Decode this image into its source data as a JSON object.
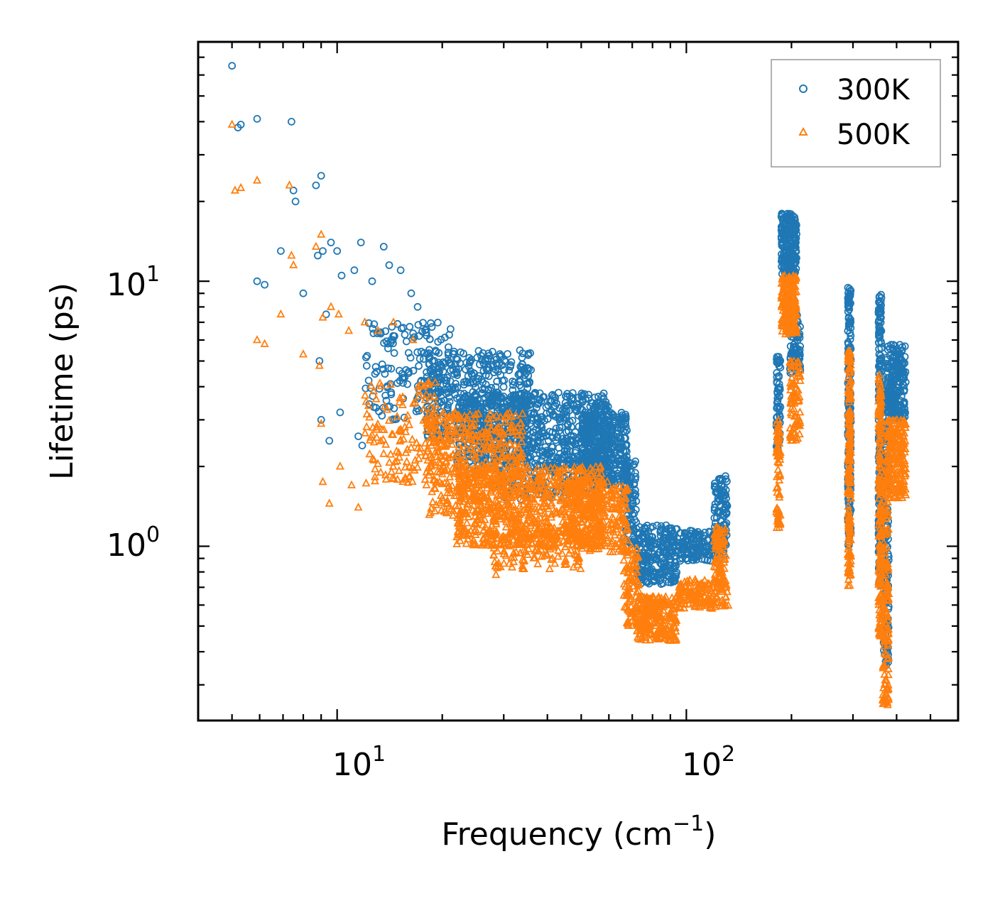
{
  "chart_data": {
    "type": "scatter",
    "xlabel": "Frequency (cm",
    "xlabel_sup": "−1",
    "xlabel_end": ")",
    "ylabel": "Lifetime (ps)",
    "xscale": "log",
    "yscale": "log",
    "xlim": [
      4.0,
      600.0
    ],
    "ylim": [
      0.22,
      80.0
    ],
    "x_ticks": [
      {
        "value": 10,
        "base": "10",
        "exp": "1"
      },
      {
        "value": 100,
        "base": "10",
        "exp": "2"
      }
    ],
    "y_ticks": [
      {
        "value": 1,
        "base": "10",
        "exp": "0"
      },
      {
        "value": 10,
        "base": "10",
        "exp": "1"
      }
    ],
    "legend_position": "top-right",
    "series": [
      {
        "name": "300K",
        "marker": "circle",
        "color": "#1f77b4",
        "points": [
          [
            5.0,
            65.0
          ],
          [
            5.2,
            38.0
          ],
          [
            5.3,
            39.0
          ],
          [
            5.9,
            41.0
          ],
          [
            7.4,
            40.0
          ],
          [
            7.5,
            22.0
          ],
          [
            7.6,
            20.0
          ],
          [
            8.7,
            23.0
          ],
          [
            9.0,
            25.0
          ],
          [
            5.9,
            10.0
          ],
          [
            6.2,
            9.7
          ],
          [
            6.9,
            13.0
          ],
          [
            8.0,
            9.0
          ],
          [
            8.8,
            12.5
          ],
          [
            9.1,
            13.0
          ],
          [
            9.6,
            14.0
          ],
          [
            10.0,
            13.0
          ],
          [
            10.3,
            10.5
          ],
          [
            11.2,
            11.0
          ],
          [
            11.7,
            14.0
          ],
          [
            12.6,
            10.0
          ],
          [
            13.6,
            13.5
          ],
          [
            14.1,
            11.5
          ],
          [
            15.2,
            11.0
          ],
          [
            16.3,
            9.0
          ],
          [
            17.0,
            8.0
          ],
          [
            8.9,
            5.0
          ],
          [
            9.3,
            7.5
          ],
          [
            9.0,
            3.0
          ],
          [
            9.5,
            2.5
          ],
          [
            10.2,
            3.2
          ],
          [
            11.5,
            2.6
          ],
          [
            11.8,
            2.4
          ]
        ],
        "clusters": [
          {
            "x": [
              12.0,
              22.0
            ],
            "y": [
              3.0,
              7.0
            ],
            "n": 160
          },
          {
            "x": [
              18.0,
              36.0
            ],
            "y": [
              2.5,
              5.5
            ],
            "n": 420
          },
          {
            "x": [
              22.0,
              60.0
            ],
            "y": [
              2.0,
              3.8
            ],
            "n": 650
          },
          {
            "x": [
              50.0,
              68.0
            ],
            "y": [
              1.7,
              3.2
            ],
            "n": 380
          },
          {
            "x": [
              28.0,
              55.0
            ],
            "y": [
              1.5,
              2.3
            ],
            "n": 160
          },
          {
            "x": [
              66.0,
              72.0
            ],
            "y": [
              1.0,
              2.1
            ],
            "n": 90
          },
          {
            "x": [
              72.0,
              94.0
            ],
            "y": [
              0.72,
              1.2
            ],
            "n": 260
          },
          {
            "x": [
              95.0,
              130.0
            ],
            "y": [
              0.88,
              1.15
            ],
            "n": 150
          },
          {
            "x": [
              120.0,
              131.0
            ],
            "y": [
              1.1,
              1.85
            ],
            "n": 90
          },
          {
            "x": [
              181.0,
              186.0
            ],
            "y": [
              2.3,
              5.2
            ],
            "n": 60
          },
          {
            "x": [
              187.0,
              207.0
            ],
            "y": [
              10.5,
              18.0
            ],
            "n": 220
          },
          {
            "x": [
              198.0,
              212.0
            ],
            "y": [
              4.5,
              7.5
            ],
            "n": 80
          },
          {
            "x": [
              290.0,
              296.0
            ],
            "y": [
              1.0,
              9.5
            ],
            "n": 180
          },
          {
            "x": [
              355.0,
              362.0
            ],
            "y": [
              0.7,
              9.0
            ],
            "n": 180
          },
          {
            "x": [
              365.0,
              380.0
            ],
            "y": [
              0.35,
              4.0
            ],
            "n": 160
          },
          {
            "x": [
              375.0,
              425.0
            ],
            "y": [
              3.0,
              5.8
            ],
            "n": 220
          }
        ]
      },
      {
        "name": "500K",
        "marker": "triangle",
        "color": "#ff7f0e",
        "points": [
          [
            5.0,
            39.0
          ],
          [
            5.1,
            22.0
          ],
          [
            5.3,
            22.5
          ],
          [
            5.9,
            24.0
          ],
          [
            7.3,
            23.0
          ],
          [
            7.4,
            12.5
          ],
          [
            7.5,
            11.5
          ],
          [
            8.7,
            13.5
          ],
          [
            9.0,
            15.0
          ],
          [
            5.9,
            6.0
          ],
          [
            6.2,
            5.8
          ],
          [
            6.9,
            7.5
          ],
          [
            8.0,
            5.3
          ],
          [
            8.9,
            4.8
          ],
          [
            9.1,
            7.3
          ],
          [
            9.6,
            8.0
          ],
          [
            10.1,
            7.5
          ],
          [
            10.8,
            6.5
          ],
          [
            12.0,
            7.0
          ],
          [
            13.1,
            6.5
          ],
          [
            14.5,
            7.0
          ],
          [
            16.5,
            6.0
          ],
          [
            9.0,
            2.9
          ],
          [
            9.1,
            1.75
          ],
          [
            9.5,
            1.45
          ],
          [
            10.2,
            2.0
          ],
          [
            11.0,
            1.7
          ],
          [
            11.5,
            1.4
          ],
          [
            28.5,
            0.78
          ]
        ],
        "clusters": [
          {
            "x": [
              12.0,
              20.0
            ],
            "y": [
              1.7,
              4.2
            ],
            "n": 150
          },
          {
            "x": [
              18.0,
              34.0
            ],
            "y": [
              1.3,
              3.2
            ],
            "n": 420
          },
          {
            "x": [
              22.0,
              58.0
            ],
            "y": [
              1.0,
              2.0
            ],
            "n": 700
          },
          {
            "x": [
              45.0,
              68.0
            ],
            "y": [
              0.95,
              1.8
            ],
            "n": 320
          },
          {
            "x": [
              28.0,
              50.0
            ],
            "y": [
              0.82,
              1.15
            ],
            "n": 140
          },
          {
            "x": [
              66.0,
              73.0
            ],
            "y": [
              0.5,
              1.0
            ],
            "n": 90
          },
          {
            "x": [
              72.0,
              94.0
            ],
            "y": [
              0.44,
              0.65
            ],
            "n": 240
          },
          {
            "x": [
              95.0,
              132.0
            ],
            "y": [
              0.58,
              0.75
            ],
            "n": 150
          },
          {
            "x": [
              120.0,
              130.0
            ],
            "y": [
              0.72,
              1.2
            ],
            "n": 80
          },
          {
            "x": [
              181.0,
              186.0
            ],
            "y": [
              1.15,
              3.0
            ],
            "n": 70
          },
          {
            "x": [
              187.0,
              207.0
            ],
            "y": [
              6.3,
              10.5
            ],
            "n": 220
          },
          {
            "x": [
              198.0,
              212.0
            ],
            "y": [
              2.5,
              5.0
            ],
            "n": 80
          },
          {
            "x": [
              290.0,
              296.0
            ],
            "y": [
              0.7,
              5.5
            ],
            "n": 180
          },
          {
            "x": [
              355.0,
              362.0
            ],
            "y": [
              0.45,
              4.5
            ],
            "n": 180
          },
          {
            "x": [
              365.0,
              380.0
            ],
            "y": [
              0.25,
              2.0
            ],
            "n": 160
          },
          {
            "x": [
              375.0,
              425.0
            ],
            "y": [
              1.5,
              3.0
            ],
            "n": 220
          }
        ]
      }
    ]
  }
}
